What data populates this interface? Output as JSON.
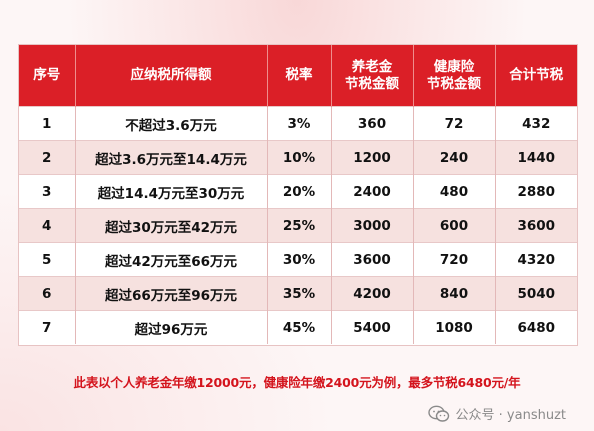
{
  "table": {
    "headers": [
      "序号",
      "应纳税所得额",
      "税率",
      "养老金\n节税金额",
      "健康险\n节税金额",
      "合计节税"
    ],
    "rows": [
      [
        "1",
        "不超过3.6万元",
        "3%",
        "360",
        "72",
        "432"
      ],
      [
        "2",
        "超过3.6万元至14.4万元",
        "10%",
        "1200",
        "240",
        "1440"
      ],
      [
        "3",
        "超过14.4万元至30万元",
        "20%",
        "2400",
        "480",
        "2880"
      ],
      [
        "4",
        "超过30万元至42万元",
        "25%",
        "3000",
        "600",
        "3600"
      ],
      [
        "5",
        "超过42万元至66万元",
        "30%",
        "3600",
        "720",
        "4320"
      ],
      [
        "6",
        "超过66万元至96万元",
        "35%",
        "4200",
        "840",
        "5040"
      ],
      [
        "7",
        "超过96万元",
        "45%",
        "5400",
        "1080",
        "6480"
      ]
    ]
  },
  "note": "此表以个人养老金年缴12000元，健康险年缴2400元为例，最多节税6480元/年",
  "watermark": {
    "text": "公众号 · yanshuzt",
    "icon": "wechat-icon"
  },
  "colors": {
    "header": "#db1f27",
    "alt_row": "#f6e1df",
    "note": "#d4141d"
  }
}
